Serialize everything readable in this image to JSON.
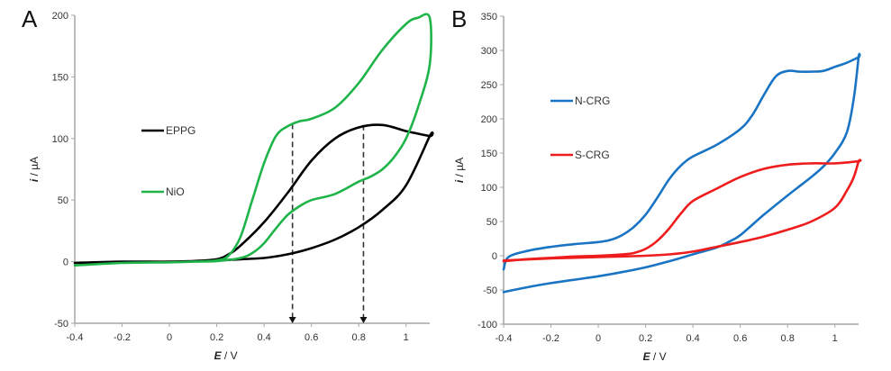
{
  "chart_data": [
    {
      "panel": "A",
      "type": "line",
      "title": "",
      "xlabel_italic": "E",
      "xlabel_unit": " / V",
      "ylabel_italic": "i",
      "ylabel_unit": " / µA",
      "xlim": [
        -0.4,
        1.1
      ],
      "ylim": [
        -50,
        200
      ],
      "xticks": [
        -0.4,
        -0.2,
        0,
        0.2,
        0.4,
        0.6,
        0.8,
        1
      ],
      "xtick_labels": [
        "-0.4",
        "-0.2",
        "0",
        "0.2",
        "0.4",
        "0.6",
        "0.8",
        "1"
      ],
      "yticks": [
        -50,
        0,
        50,
        100,
        150,
        200
      ],
      "ytick_labels": [
        "-50",
        "0",
        "50",
        "100",
        "150",
        "200"
      ],
      "grid": false,
      "legend_placement": "center-left",
      "series": [
        {
          "name": "EPPG",
          "color": "#000000",
          "x": [
            -0.4,
            -0.2,
            0.0,
            0.1,
            0.2,
            0.3,
            0.4,
            0.5,
            0.6,
            0.7,
            0.8,
            0.9,
            1.0,
            1.1,
            1.1,
            1.0,
            0.9,
            0.8,
            0.7,
            0.6,
            0.5,
            0.4,
            0.3,
            0.25,
            0.2,
            0.1,
            0.0,
            -0.2,
            -0.4
          ],
          "y": [
            -1,
            0,
            0,
            0.5,
            1,
            2,
            3,
            6,
            11,
            18,
            28,
            42,
            62,
            102,
            102,
            106,
            111,
            109,
            100,
            82,
            56,
            32,
            13,
            6,
            2,
            0.5,
            0,
            -0.5,
            -1
          ]
        },
        {
          "name": "NiO",
          "color": "#1fb44a",
          "x": [
            -0.4,
            -0.2,
            0.0,
            0.1,
            0.2,
            0.25,
            0.3,
            0.35,
            0.4,
            0.45,
            0.5,
            0.55,
            0.6,
            0.7,
            0.8,
            0.9,
            1.0,
            1.05,
            1.1,
            1.1,
            1.05,
            1.0,
            0.95,
            0.9,
            0.85,
            0.8,
            0.7,
            0.6,
            0.55,
            0.5,
            0.45,
            0.4,
            0.35,
            0.3,
            0.2,
            0.1,
            0.0,
            -0.2,
            -0.4
          ],
          "y": [
            -3,
            -1,
            -0.5,
            0,
            1,
            5,
            20,
            50,
            80,
            102,
            110,
            114,
            116,
            125,
            145,
            172,
            193,
            198,
            198,
            160,
            125,
            100,
            85,
            75,
            69,
            65,
            55,
            50,
            45,
            38,
            27,
            15,
            7,
            3,
            0.5,
            0,
            -0.5,
            -1,
            -3
          ]
        }
      ],
      "annotations": [
        {
          "type": "dashed-arrow-down",
          "x": 0.52,
          "from_y": 112,
          "to_y": -50
        },
        {
          "type": "dashed-arrow-down",
          "x": 0.82,
          "from_y": 111,
          "to_y": -50
        }
      ]
    },
    {
      "panel": "B",
      "type": "line",
      "title": "",
      "xlabel_italic": "E",
      "xlabel_unit": " / V",
      "ylabel_italic": "i",
      "ylabel_unit": " / µA",
      "xlim": [
        -0.4,
        1.1
      ],
      "ylim": [
        -100,
        350
      ],
      "xticks": [
        -0.4,
        -0.2,
        0,
        0.2,
        0.4,
        0.6,
        0.8,
        1
      ],
      "xtick_labels": [
        "-0.4",
        "-0.2",
        "0",
        "0.2",
        "0.4",
        "0.6",
        "0.8",
        "1"
      ],
      "yticks": [
        -100,
        -50,
        0,
        50,
        100,
        150,
        200,
        250,
        300,
        350
      ],
      "ytick_labels": [
        "-100",
        "-50",
        "0",
        "50",
        "100",
        "150",
        "200",
        "250",
        "300",
        "350"
      ],
      "grid": false,
      "legend_placement": "center-left",
      "series": [
        {
          "name": "N-CRG",
          "color": "#1a74c4",
          "x": [
            -0.4,
            -0.38,
            -0.3,
            -0.2,
            -0.1,
            0.0,
            0.05,
            0.1,
            0.15,
            0.2,
            0.25,
            0.3,
            0.35,
            0.4,
            0.5,
            0.6,
            0.65,
            0.7,
            0.75,
            0.8,
            0.85,
            0.9,
            0.95,
            1.0,
            1.05,
            1.1,
            1.1,
            1.08,
            1.05,
            1.0,
            0.95,
            0.9,
            0.8,
            0.7,
            0.6,
            0.55,
            0.5,
            0.4,
            0.3,
            0.2,
            0.1,
            0.0,
            -0.1,
            -0.2,
            -0.3,
            -0.4
          ],
          "y": [
            -20,
            -2,
            7,
            13,
            17,
            20,
            23,
            30,
            42,
            60,
            85,
            112,
            132,
            145,
            162,
            185,
            205,
            235,
            262,
            270,
            269,
            269,
            270,
            276,
            282,
            290,
            290,
            230,
            180,
            150,
            130,
            115,
            88,
            60,
            30,
            20,
            12,
            2,
            -8,
            -17,
            -24,
            -30,
            -35,
            -40,
            -46,
            -53
          ]
        },
        {
          "name": "S-CRG",
          "color": "#ee1c1c",
          "x": [
            -0.4,
            -0.3,
            -0.2,
            -0.1,
            0.0,
            0.1,
            0.15,
            0.2,
            0.25,
            0.3,
            0.35,
            0.4,
            0.5,
            0.6,
            0.7,
            0.8,
            0.9,
            1.0,
            1.1,
            1.1,
            1.08,
            1.05,
            1.0,
            0.9,
            0.8,
            0.7,
            0.6,
            0.5,
            0.4,
            0.3,
            0.2,
            0.1,
            0.0,
            -0.2,
            -0.4
          ],
          "y": [
            -8,
            -5,
            -3,
            -1,
            0,
            2,
            4,
            10,
            22,
            40,
            62,
            80,
            98,
            115,
            127,
            133,
            135,
            135,
            138,
            138,
            115,
            95,
            70,
            50,
            38,
            28,
            20,
            13,
            6,
            2,
            0,
            -1,
            -2,
            -4,
            -7
          ]
        }
      ]
    }
  ],
  "panels": {
    "A": {
      "letter": "A"
    },
    "B": {
      "letter": "B"
    }
  }
}
